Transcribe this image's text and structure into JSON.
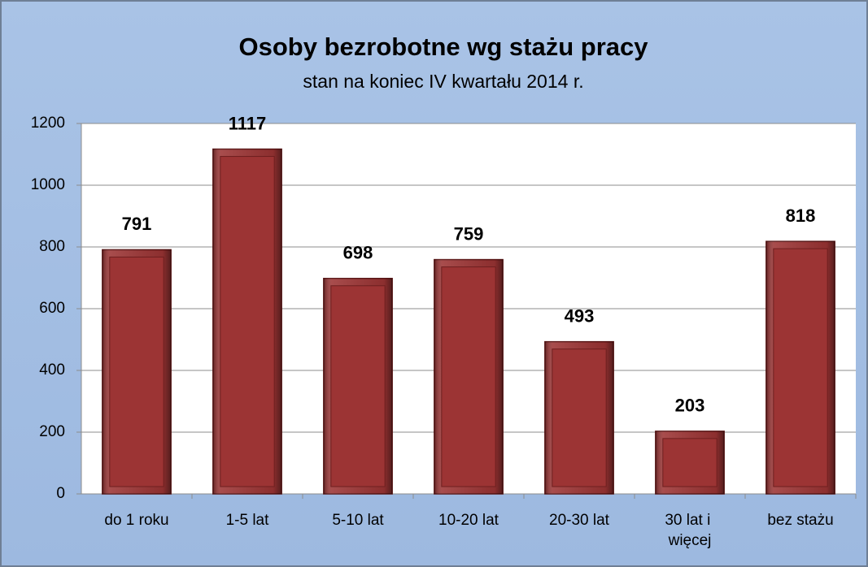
{
  "chart_data": {
    "type": "bar",
    "title": "Osoby bezrobotne wg stażu pracy",
    "subtitle": "stan na koniec IV kwartału 2014 r.",
    "categories": [
      "do 1 roku",
      "1-5 lat",
      "5-10 lat",
      "10-20 lat",
      "20-30 lat",
      "30 lat i więcej",
      "bez stażu"
    ],
    "values": [
      791,
      1117,
      698,
      759,
      493,
      203,
      818
    ],
    "color": "#9c3434",
    "ylim": [
      0,
      1200
    ],
    "yticks": [
      0,
      200,
      400,
      600,
      800,
      1000,
      1200
    ],
    "grid": true
  }
}
